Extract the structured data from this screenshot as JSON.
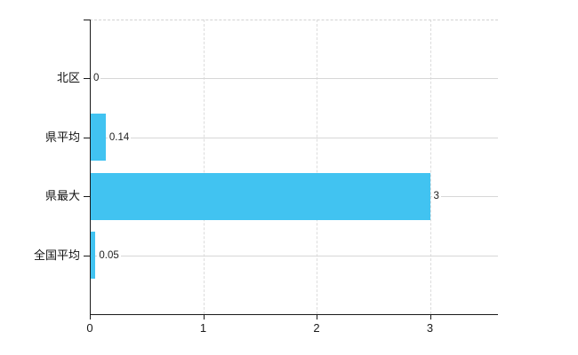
{
  "chart": {
    "background": "#ffffff",
    "bar_color": "#41c3f1",
    "grid_color": "#d7d7d7",
    "axis_color": "#1a1a1a",
    "text_color": "#1a1a1a"
  },
  "chart_data": {
    "type": "bar",
    "orientation": "horizontal",
    "title": "",
    "categories": [
      "北区",
      "県平均",
      "県最大",
      "全国平均"
    ],
    "values": [
      0,
      0.14,
      3,
      0.05
    ],
    "value_labels": [
      "0",
      "0.14",
      "3",
      "0.05"
    ],
    "x_ticks": [
      0,
      1,
      2,
      3
    ],
    "x_tick_labels": [
      "0",
      "1",
      "2",
      "3"
    ],
    "xlim": [
      0,
      3.6
    ],
    "grid": true,
    "legend": false
  }
}
